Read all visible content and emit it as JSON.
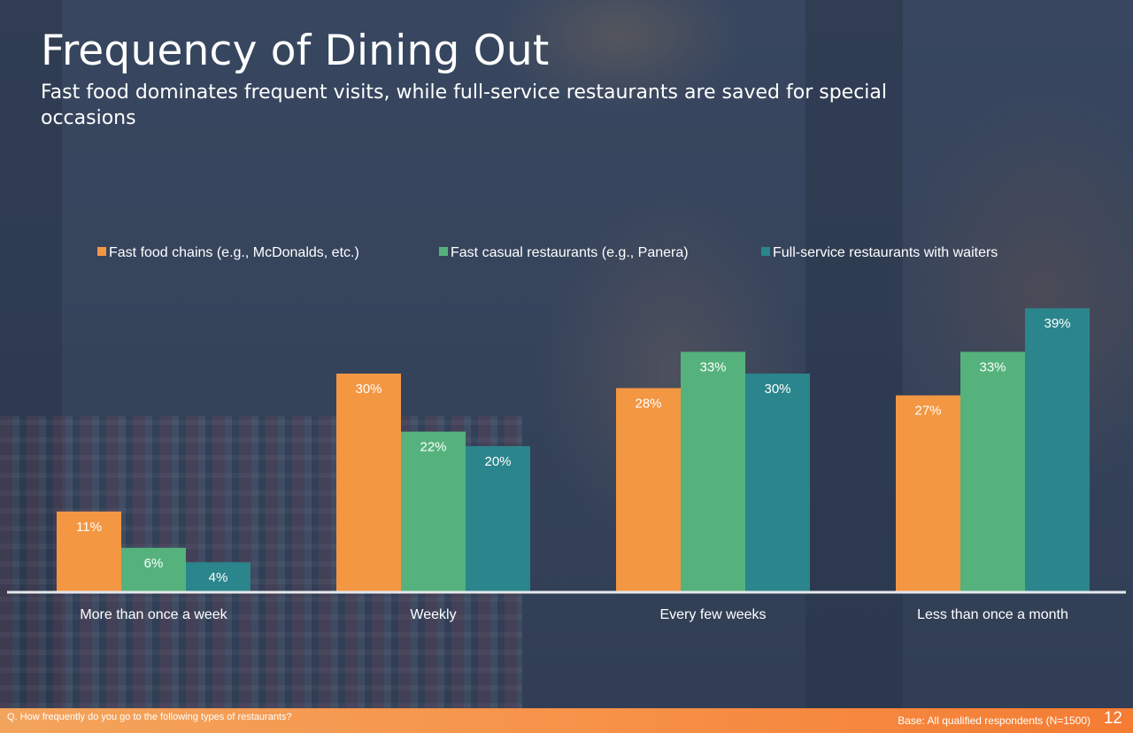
{
  "slide": {
    "title": "Frequency of Dining Out",
    "subtitle": "Fast food dominates frequent visits, while full-service restaurants are saved for special occasions",
    "question": "Q. How frequently do you go to the following types of restaurants?",
    "base": "Base: All qualified respondents (N=1500)",
    "page_number": "12"
  },
  "chart_data": {
    "type": "bar",
    "categories": [
      "More than once a week",
      "Weekly",
      "Every few weeks",
      "Less than once a month"
    ],
    "series": [
      {
        "name": "Fast food chains (e.g., McDonalds, etc.)",
        "color": "#f39743",
        "values": [
          11,
          30,
          28,
          27
        ]
      },
      {
        "name": "Fast casual restaurants (e.g., Panera)",
        "color": "#55b27c",
        "values": [
          6,
          22,
          33,
          33
        ]
      },
      {
        "name": "Full-service restaurants with waiters",
        "color": "#2b858c",
        "values": [
          4,
          20,
          30,
          39
        ]
      }
    ],
    "value_suffix": "%",
    "ylim": [
      0,
      40
    ],
    "legend_position": "top",
    "grid": false,
    "xlabel": "",
    "ylabel": ""
  },
  "style": {
    "text_color": "#ffffff",
    "axis_color": "#e6e8ec"
  }
}
